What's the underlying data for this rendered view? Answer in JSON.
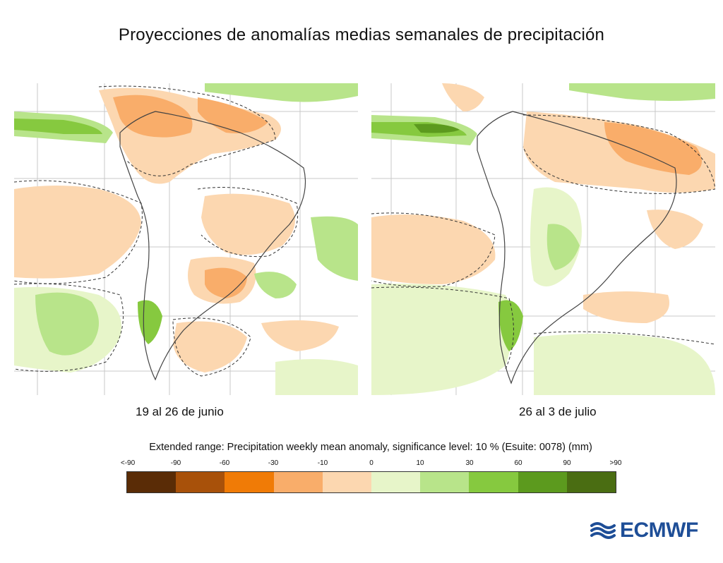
{
  "title": "Proyecciones de anomalías medias semanales  de precipitación",
  "panels": [
    {
      "label": "19 al 26 de junio"
    },
    {
      "label": "26 al 3 de julio"
    }
  ],
  "legend": {
    "caption": "Extended range: Precipitation weekly mean anomaly, significance level: 10 % (Esuite: 0078) (mm)",
    "ticks": [
      "<-90",
      "-90",
      "-60",
      "-30",
      "-10",
      "0",
      "10",
      "30",
      "60",
      "90",
      ">90"
    ],
    "colors": [
      "#5a2c06",
      "#a8510a",
      "#f07b06",
      "#f9ad6a",
      "#fcd7b0",
      "#e7f5c9",
      "#b8e48a",
      "#86c93f",
      "#5c9a1e",
      "#4a6d12"
    ]
  },
  "logo": {
    "text": "ECMWF",
    "color": "#1e4e97"
  }
}
